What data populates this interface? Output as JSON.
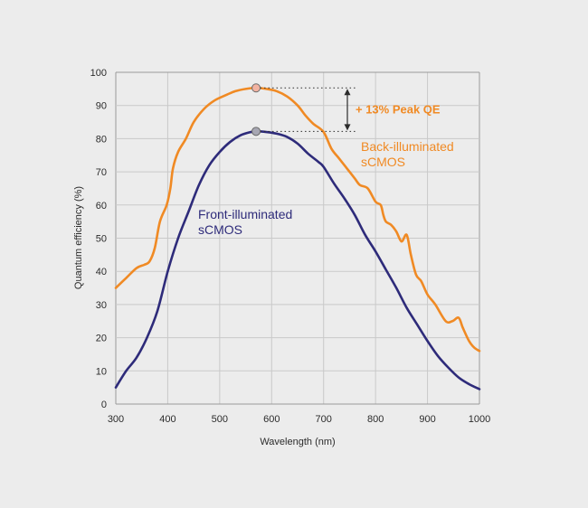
{
  "chart_data": {
    "type": "line",
    "title": "",
    "xlabel": "Wavelength (nm)",
    "ylabel": "Quantum efficiency (%)",
    "xlim": [
      300,
      1000
    ],
    "ylim": [
      0,
      100
    ],
    "x_ticks": [
      300,
      400,
      500,
      600,
      700,
      800,
      900,
      1000
    ],
    "y_ticks": [
      0,
      10,
      20,
      30,
      40,
      50,
      60,
      70,
      80,
      90,
      100
    ],
    "grid": true,
    "series": [
      {
        "name": "Back-illuminated sCMOS",
        "color": "#f08a24",
        "points": [
          [
            300,
            35
          ],
          [
            320,
            38
          ],
          [
            340,
            41
          ],
          [
            355,
            42
          ],
          [
            365,
            43
          ],
          [
            375,
            47
          ],
          [
            385,
            55
          ],
          [
            398,
            60
          ],
          [
            405,
            65
          ],
          [
            410,
            71
          ],
          [
            420,
            76
          ],
          [
            435,
            80
          ],
          [
            450,
            85
          ],
          [
            470,
            89
          ],
          [
            490,
            91.5
          ],
          [
            510,
            93
          ],
          [
            530,
            94.3
          ],
          [
            550,
            95
          ],
          [
            570,
            95.3
          ],
          [
            590,
            95
          ],
          [
            610,
            94.3
          ],
          [
            630,
            92.7
          ],
          [
            650,
            90
          ],
          [
            665,
            87
          ],
          [
            680,
            84.5
          ],
          [
            700,
            82
          ],
          [
            715,
            77
          ],
          [
            730,
            74
          ],
          [
            745,
            71
          ],
          [
            760,
            68
          ],
          [
            770,
            66
          ],
          [
            785,
            65
          ],
          [
            800,
            61
          ],
          [
            810,
            60
          ],
          [
            815,
            57
          ],
          [
            820,
            55
          ],
          [
            830,
            54
          ],
          [
            840,
            52
          ],
          [
            850,
            49
          ],
          [
            860,
            51
          ],
          [
            868,
            45
          ],
          [
            878,
            39
          ],
          [
            888,
            37
          ],
          [
            900,
            33
          ],
          [
            915,
            30
          ],
          [
            935,
            25
          ],
          [
            948,
            25
          ],
          [
            960,
            26
          ],
          [
            968,
            23
          ],
          [
            980,
            19
          ],
          [
            990,
            17
          ],
          [
            1000,
            16
          ]
        ]
      },
      {
        "name": "Front-illuminated sCMOS",
        "color": "#2e2b7a",
        "points": [
          [
            300,
            5
          ],
          [
            320,
            10
          ],
          [
            340,
            14
          ],
          [
            360,
            20
          ],
          [
            380,
            28
          ],
          [
            400,
            40
          ],
          [
            420,
            50
          ],
          [
            440,
            58
          ],
          [
            460,
            66
          ],
          [
            480,
            72
          ],
          [
            500,
            76
          ],
          [
            520,
            79
          ],
          [
            540,
            81
          ],
          [
            560,
            82
          ],
          [
            570,
            82.2
          ],
          [
            590,
            82
          ],
          [
            610,
            81.5
          ],
          [
            630,
            80.5
          ],
          [
            650,
            78.5
          ],
          [
            670,
            75.5
          ],
          [
            690,
            73
          ],
          [
            700,
            71.5
          ],
          [
            720,
            66.5
          ],
          [
            740,
            62
          ],
          [
            760,
            57
          ],
          [
            780,
            51
          ],
          [
            800,
            46
          ],
          [
            820,
            40.5
          ],
          [
            840,
            35
          ],
          [
            860,
            29
          ],
          [
            880,
            24
          ],
          [
            900,
            19
          ],
          [
            920,
            14.5
          ],
          [
            940,
            11
          ],
          [
            960,
            8
          ],
          [
            980,
            6
          ],
          [
            1000,
            4.5
          ]
        ]
      }
    ],
    "annotations": [
      {
        "name": "peak-qe-difference",
        "text": "+ 13% Peak QE",
        "x": 570,
        "y_top": 95.3,
        "y_bottom": 82.2
      },
      {
        "name": "back-illuminated-label",
        "lines": [
          "Back-illuminated",
          "sCMOS"
        ],
        "color": "#f08a24"
      },
      {
        "name": "front-illuminated-label",
        "lines": [
          "Front-illuminated",
          "sCMOS"
        ],
        "color": "#2e2b7a"
      }
    ]
  }
}
